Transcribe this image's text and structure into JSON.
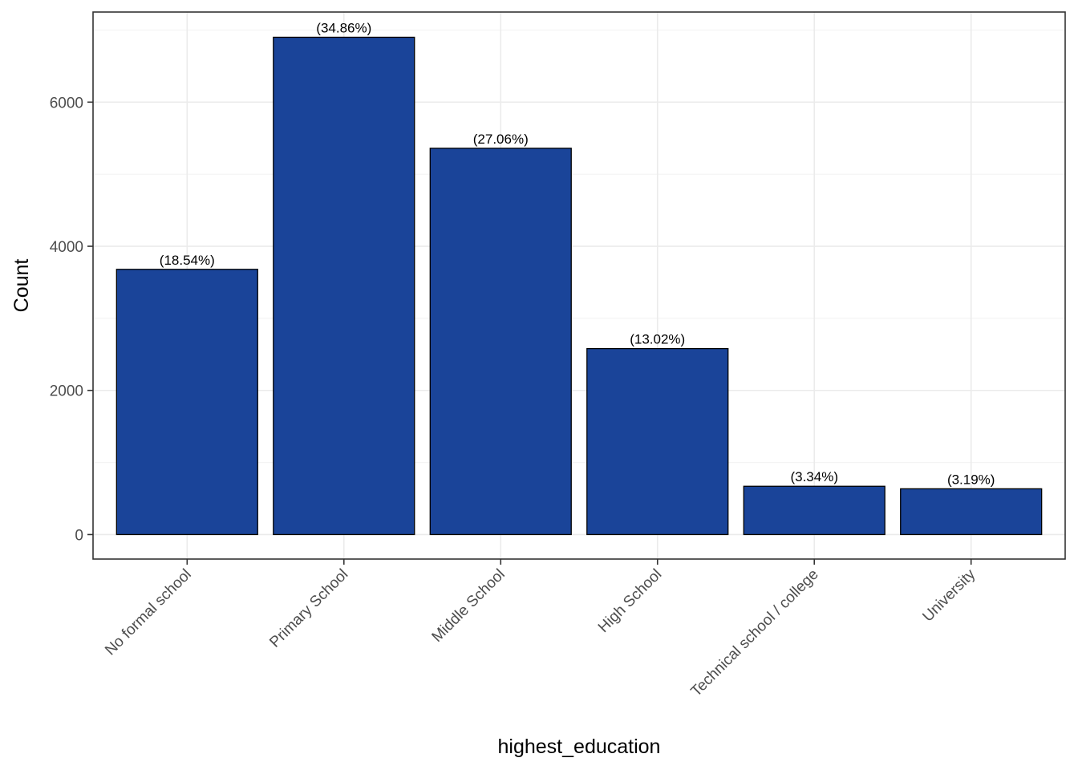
{
  "chart_data": {
    "type": "bar",
    "title": "",
    "xlabel": "highest_education",
    "ylabel": "Count",
    "categories": [
      "No formal school",
      "Primary School",
      "Middle School",
      "High School",
      "Technical school / college",
      "University"
    ],
    "values": [
      3680,
      6900,
      5360,
      2580,
      670,
      635
    ],
    "labels": [
      "(18.54%)",
      "(34.86%)",
      "(27.06%)",
      "(13.02%)",
      "(3.34%)",
      "(3.19%)"
    ],
    "yticks": [
      0,
      2000,
      4000,
      6000
    ],
    "ytick_labels": [
      "0",
      "2000",
      "4000",
      "6000"
    ],
    "ylim": [
      -340,
      7250
    ],
    "grid": true,
    "legend": "none"
  },
  "colors": {
    "bar_fill": "#1a4499",
    "bar_border": "#000000",
    "panel_border": "#333333",
    "grid_major": "#ebebeb",
    "grid_minor": "#f4f4f4",
    "tick_text": "#4d4d4d"
  }
}
